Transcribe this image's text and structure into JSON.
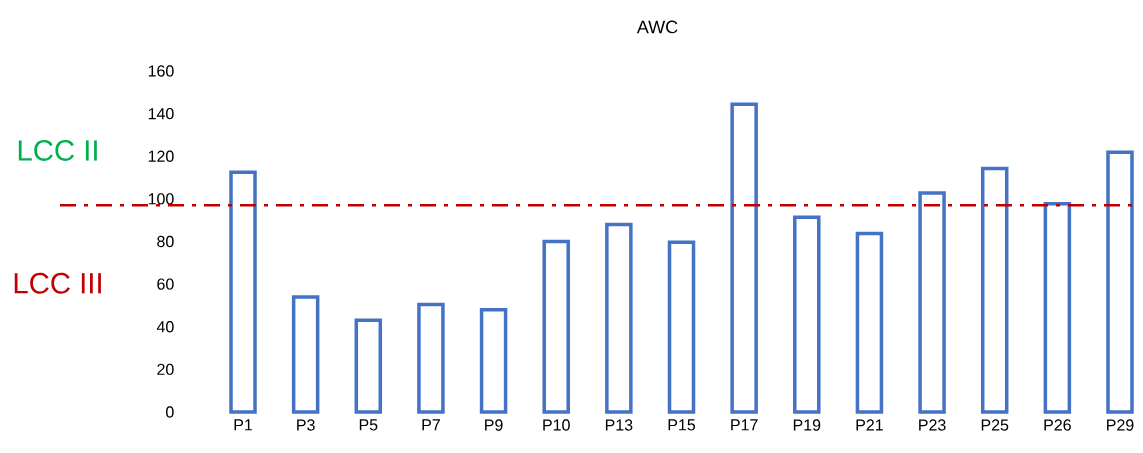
{
  "chart_data": {
    "type": "bar",
    "title": "AWC",
    "categories": [
      "P1",
      "P3",
      "P5",
      "P7",
      "P9",
      "P10",
      "P13",
      "P15",
      "P17",
      "P19",
      "P21",
      "P23",
      "P25",
      "P26",
      "P29"
    ],
    "values": [
      112.5,
      54,
      43,
      50.4,
      48,
      80,
      88,
      79.6,
      144.4,
      91.4,
      83.7,
      102.7,
      114.3,
      97.7,
      121.9
    ],
    "color": "#4472c4",
    "ylim": [
      0,
      160
    ],
    "yticks": [
      0,
      20,
      40,
      60,
      80,
      100,
      120,
      140,
      160
    ],
    "grid": false,
    "ref_lines": [
      {
        "axis": "y",
        "value": 97,
        "color": "#c00000",
        "line_style": "dashdot"
      }
    ],
    "annotations": [
      "LCC II",
      "LCC III"
    ]
  }
}
